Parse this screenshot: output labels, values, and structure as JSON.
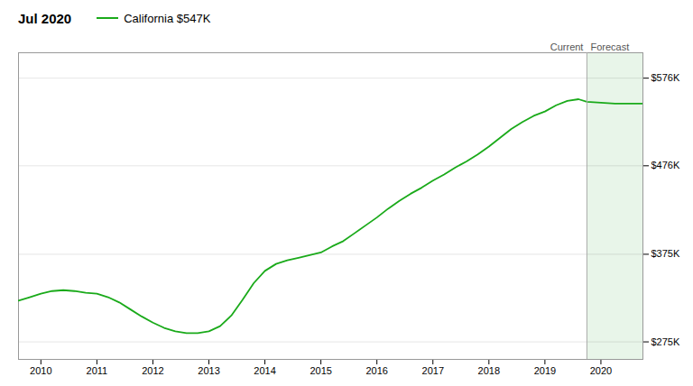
{
  "chart_data": {
    "type": "line",
    "title": "Jul 2020",
    "x": [
      2009.6,
      2009.8,
      2010.0,
      2010.2,
      2010.4,
      2010.6,
      2010.8,
      2011.0,
      2011.2,
      2011.4,
      2011.6,
      2011.8,
      2012.0,
      2012.2,
      2012.4,
      2012.6,
      2012.8,
      2013.0,
      2013.2,
      2013.4,
      2013.6,
      2013.8,
      2014.0,
      2014.2,
      2014.4,
      2014.6,
      2014.8,
      2015.0,
      2015.2,
      2015.4,
      2015.6,
      2015.8,
      2016.0,
      2016.2,
      2016.4,
      2016.6,
      2016.8,
      2017.0,
      2017.2,
      2017.4,
      2017.6,
      2017.8,
      2018.0,
      2018.2,
      2018.4,
      2018.6,
      2018.8,
      2019.0,
      2019.2,
      2019.4,
      2019.6,
      2019.75,
      2019.75,
      2020.0,
      2020.25,
      2020.5,
      2020.75
    ],
    "series": [
      {
        "name": "California $547K",
        "color": "#1aaa1a",
        "values": [
          322000,
          326000,
          330000,
          333000,
          334000,
          333000,
          331000,
          330000,
          326000,
          320000,
          312000,
          304000,
          297000,
          291000,
          287000,
          285000,
          285000,
          287000,
          293000,
          305000,
          323000,
          342000,
          356000,
          364000,
          368000,
          371000,
          374000,
          377000,
          384000,
          390000,
          399000,
          408000,
          417000,
          427000,
          436000,
          444000,
          451000,
          459000,
          466000,
          474000,
          481000,
          489000,
          498000,
          508000,
          518000,
          526000,
          533000,
          538000,
          545000,
          550000,
          552000,
          549000,
          549000,
          548000,
          547000,
          547000,
          547000
        ]
      }
    ],
    "xlim": [
      2009.6,
      2020.75
    ],
    "xticks": [
      2010,
      2011,
      2012,
      2013,
      2014,
      2015,
      2016,
      2017,
      2018,
      2019,
      2020
    ],
    "ylim": [
      255000,
      605000
    ],
    "yticks": [
      {
        "value": 275000,
        "label": "$275K"
      },
      {
        "value": 375000,
        "label": "$375K"
      },
      {
        "value": 476000,
        "label": "$476K"
      },
      {
        "value": 576000,
        "label": "$576K"
      }
    ],
    "grid": true,
    "shaded_region": {
      "x": [
        2019.75,
        2020.75
      ],
      "color": "#e8f5e9"
    },
    "divider": {
      "x": 2019.75,
      "color": "#aaaaaa"
    },
    "annotations": [
      {
        "text": "Current",
        "x": 2019.75
      },
      {
        "text": "Forecast",
        "x": 2019.75
      }
    ]
  }
}
